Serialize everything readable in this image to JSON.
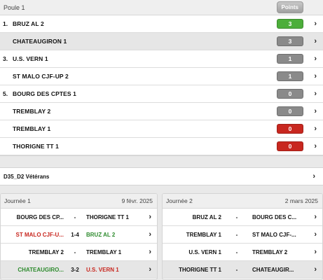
{
  "poule": {
    "title": "Poule 1",
    "points_label": "Points",
    "rows": [
      {
        "rank": "1.",
        "name": "BRUZ AL 2",
        "points": "3",
        "color": "#4cae3a",
        "alt": false
      },
      {
        "rank": "",
        "name": "CHATEAUGIRON 1",
        "points": "3",
        "color": "#8a8a8a",
        "alt": true
      },
      {
        "rank": "3.",
        "name": "U.S. VERN 1",
        "points": "1",
        "color": "#8a8a8a",
        "alt": false
      },
      {
        "rank": "",
        "name": "ST MALO CJF-UP 2",
        "points": "1",
        "color": "#8a8a8a",
        "alt": false
      },
      {
        "rank": "5.",
        "name": "BOURG DES CPTES 1",
        "points": "0",
        "color": "#8a8a8a",
        "alt": false
      },
      {
        "rank": "",
        "name": "TREMBLAY 2",
        "points": "0",
        "color": "#8a8a8a",
        "alt": false
      },
      {
        "rank": "",
        "name": "TREMBLAY 1",
        "points": "0",
        "color": "#c8271f",
        "alt": false
      },
      {
        "rank": "",
        "name": "THORIGNE TT 1",
        "points": "0",
        "color": "#c8271f",
        "alt": false
      }
    ]
  },
  "category": {
    "label": "D35_D2 Vétérans"
  },
  "days": [
    {
      "title": "Journée 1",
      "date": "9 févr. 2025",
      "matches": [
        {
          "home": "BOURG DES CP...",
          "score": "-",
          "away": "THORIGNE TT 1",
          "home_color": "#111111",
          "away_color": "#111111",
          "alt": false
        },
        {
          "home": "ST MALO CJF-U...",
          "score": "1-4",
          "away": "BRUZ AL 2",
          "home_color": "#c8271f",
          "away_color": "#2e8b2e",
          "alt": false
        },
        {
          "home": "TREMBLAY 2",
          "score": "-",
          "away": "TREMBLAY 1",
          "home_color": "#111111",
          "away_color": "#111111",
          "alt": false
        },
        {
          "home": "CHATEAUGIRO...",
          "score": "3-2",
          "away": "U.S. VERN 1",
          "home_color": "#2e8b2e",
          "away_color": "#c8271f",
          "alt": true
        }
      ]
    },
    {
      "title": "Journée 2",
      "date": "2 mars 2025",
      "matches": [
        {
          "home": "BRUZ AL 2",
          "score": "-",
          "away": "BOURG DES C...",
          "home_color": "#111111",
          "away_color": "#111111",
          "alt": false
        },
        {
          "home": "TREMBLAY 1",
          "score": "-",
          "away": "ST MALO CJF-...",
          "home_color": "#111111",
          "away_color": "#111111",
          "alt": false
        },
        {
          "home": "U.S. VERN 1",
          "score": "-",
          "away": "TREMBLAY 2",
          "home_color": "#111111",
          "away_color": "#111111",
          "alt": false
        },
        {
          "home": "THORIGNE TT 1",
          "score": "-",
          "away": "CHATEAUGIR...",
          "home_color": "#111111",
          "away_color": "#111111",
          "alt": true
        }
      ]
    }
  ],
  "icons": {
    "chevron": "›"
  }
}
